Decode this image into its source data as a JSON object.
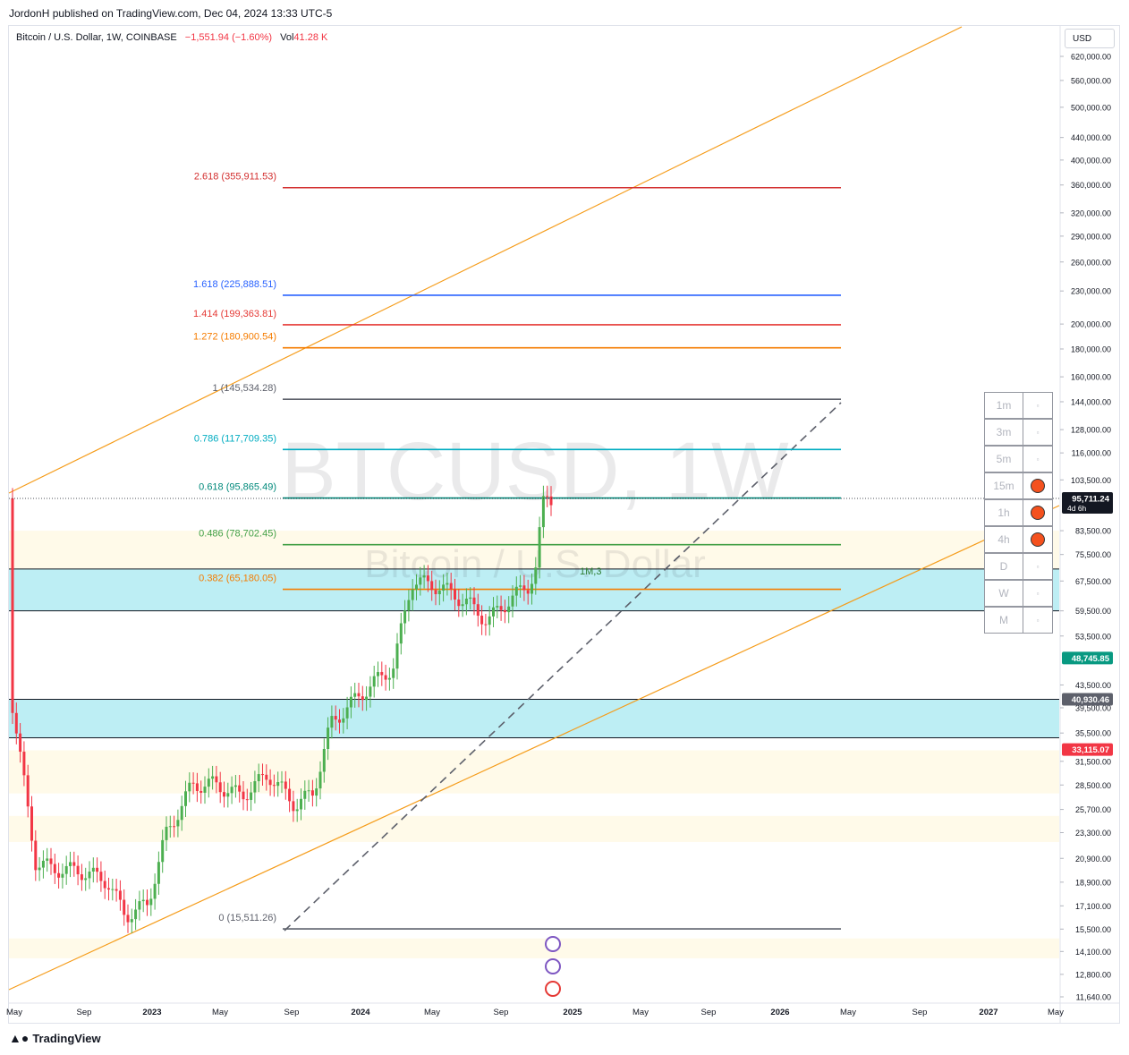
{
  "header": {
    "publish_line": "JordonH published on TradingView.com, Dec 04, 2024 13:33 UTC-5"
  },
  "symbol": {
    "name": "Bitcoin / U.S. Dollar, 1W, COINBASE",
    "change": "−1,551.94 (−1.60%)",
    "vol_label": "Vol",
    "vol_value": "41.28 K"
  },
  "currency": "USD",
  "watermark": {
    "big": "BTCUSD, 1W",
    "small": "Bitcoin / U.S. Dollar"
  },
  "footer": {
    "brand": "TradingView"
  },
  "timeframes": [
    {
      "label": "1m",
      "active": false
    },
    {
      "label": "3m",
      "active": false
    },
    {
      "label": "5m",
      "active": false
    },
    {
      "label": "15m",
      "active": true
    },
    {
      "label": "1h",
      "active": true
    },
    {
      "label": "4h",
      "active": true
    },
    {
      "label": "D",
      "active": false
    },
    {
      "label": "W",
      "active": false
    },
    {
      "label": "M",
      "active": false
    }
  ],
  "colors": {
    "up": "#4caf50",
    "down": "#f23645",
    "channel": "#f59c1a",
    "zone": "#b2ebf2"
  },
  "chart_data": {
    "type": "candlestick",
    "scale": "log",
    "ylim": [
      11640,
      620000
    ],
    "y_ticks": [
      "620,000.00",
      "560,000.00",
      "500,000.00",
      "440,000.00",
      "400,000.00",
      "360,000.00",
      "320,000.00",
      "290,000.00",
      "260,000.00",
      "230,000.00",
      "200,000.00",
      "180,000.00",
      "160,000.00",
      "144,000.00",
      "128,000.00",
      "116,000.00",
      "103,500.00",
      "83,500.00",
      "75,500.00",
      "67,500.00",
      "59,500.00",
      "53,500.00",
      "43,500.00",
      "39,500.00",
      "35,500.00",
      "31,500.00",
      "28,500.00",
      "25,700.00",
      "23,300.00",
      "20,900.00",
      "18,900.00",
      "17,100.00",
      "15,500.00",
      "14,100.00",
      "12,800.00",
      "11,640.00"
    ],
    "x_ticks": [
      "May",
      "Sep",
      "2023",
      "May",
      "Sep",
      "2024",
      "May",
      "Sep",
      "2025",
      "May",
      "Sep",
      "2026",
      "May",
      "Sep",
      "2027",
      "May"
    ],
    "price_labels": [
      {
        "value": 95711.24,
        "text": "95,711.24",
        "sub": "4d 6h",
        "color": "#131722"
      },
      {
        "value": 48745.85,
        "text": "48,745.85",
        "color": "#089981"
      },
      {
        "value": 40930.46,
        "text": "40,930.46",
        "color": "#5d606b"
      },
      {
        "value": 33115.07,
        "text": "33,115.07",
        "color": "#f23645"
      }
    ],
    "fib_levels": [
      {
        "ratio": "2.618",
        "value": 355911.53,
        "label": "2.618 (355,911.53)",
        "color": "#d32f2f"
      },
      {
        "ratio": "1.618",
        "value": 225888.51,
        "label": "1.618 (225,888.51)",
        "color": "#2962ff"
      },
      {
        "ratio": "1.414",
        "value": 199363.81,
        "label": "1.414 (199,363.81)",
        "color": "#e53935"
      },
      {
        "ratio": "1.272",
        "value": 180900.54,
        "label": "1.272 (180,900.54)",
        "color": "#f57c00"
      },
      {
        "ratio": "1",
        "value": 145534.28,
        "label": "1 (145,534.28)",
        "color": "#5d606b"
      },
      {
        "ratio": "0.786",
        "value": 117709.35,
        "label": "0.786 (117,709.35)",
        "color": "#00acc1"
      },
      {
        "ratio": "0.618",
        "value": 95865.49,
        "label": "0.618 (95,865.49)",
        "color": "#00897b"
      },
      {
        "ratio": "0.486",
        "value": 78702.45,
        "label": "0.486 (78,702.45)",
        "color": "#43a047"
      },
      {
        "ratio": "0.382",
        "value": 65180.05,
        "label": "0.382 (65,180.05)",
        "color": "#f57c00"
      },
      {
        "ratio": "0",
        "value": 15511.26,
        "label": "0 (15,511.26)",
        "color": "#5d606b"
      }
    ],
    "zones": [
      {
        "low": 59500,
        "high": 71000
      },
      {
        "low": 34800,
        "high": 40930
      }
    ],
    "annotations": [
      "1M,3"
    ]
  }
}
